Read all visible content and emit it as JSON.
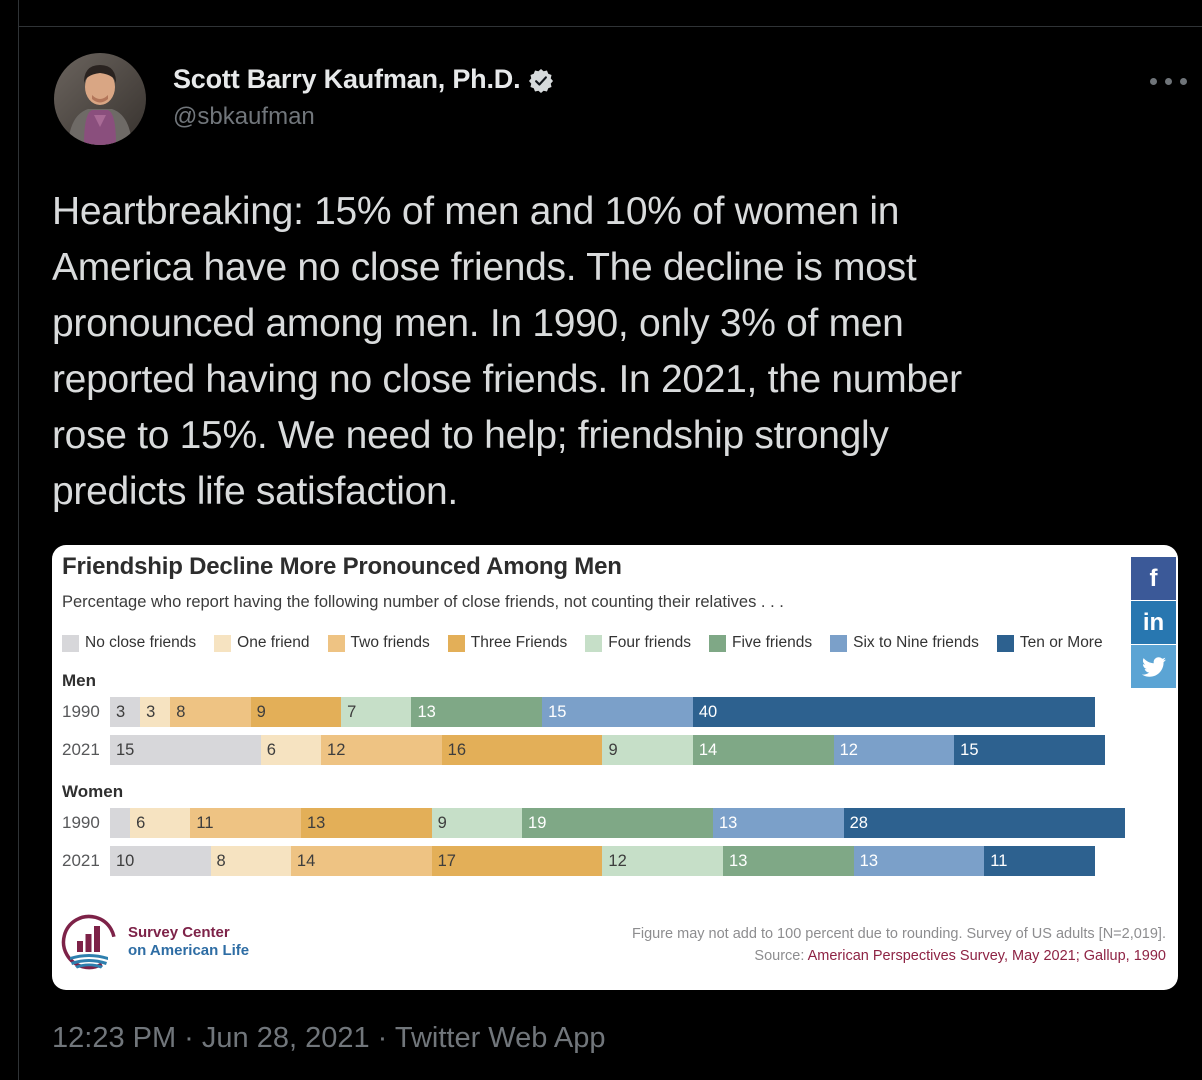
{
  "tweet": {
    "author": {
      "name": "Scott Barry Kaufman, Ph.D.",
      "handle": "@sbkaufman",
      "verified": true
    },
    "body": "Heartbreaking: 15% of men and 10% of women in\nAmerica have no close friends. The decline is most\npronounced among men. In 1990, only 3% of men\nreported having no close friends. In 2021, the number\nrose to 15%. We need to help; friendship strongly\npredicts life satisfaction.",
    "timestamp": "12:23 PM · Jun 28, 2021 · Twitter Web App"
  },
  "chart_data": {
    "type": "bar",
    "variant": "horizontal-stacked",
    "unit": "percent",
    "title": "Friendship Decline More Pronounced Among Men",
    "subtitle": "Percentage who report having the following number of close friends, not counting their relatives . . .",
    "categories": [
      "No close friends",
      "One friend",
      "Two friends",
      "Three Friends",
      "Four friends",
      "Five friends",
      "Six to Nine friends",
      "Ten or More"
    ],
    "colors": [
      "#d7d7da",
      "#f6e3c1",
      "#eec383",
      "#e3af58",
      "#c6dfc8",
      "#7fa886",
      "#7ba0c9",
      "#2d618f"
    ],
    "white_label_from_index": 5,
    "xlim": [
      0,
      101
    ],
    "legend_position": "top",
    "grid": false,
    "groups": [
      {
        "name": "Men",
        "rows": [
          {
            "year": "1990",
            "values": [
              3,
              3,
              8,
              9,
              7,
              13,
              15,
              40
            ],
            "labels": [
              "3",
              "3",
              "8",
              "9",
              "7",
              "13",
              "15",
              "40"
            ]
          },
          {
            "year": "2021",
            "values": [
              15,
              6,
              12,
              16,
              9,
              14,
              12,
              15
            ],
            "labels": [
              "15",
              "6",
              "12",
              "16",
              "9",
              "14",
              "12",
              "15"
            ]
          }
        ]
      },
      {
        "name": "Women",
        "rows": [
          {
            "year": "1990",
            "values": [
              2,
              6,
              11,
              13,
              9,
              19,
              13,
              28
            ],
            "labels": [
              "",
              "6",
              "11",
              "13",
              "9",
              "19",
              "13",
              "28"
            ]
          },
          {
            "year": "2021",
            "values": [
              10,
              8,
              14,
              17,
              12,
              13,
              13,
              11
            ],
            "labels": [
              "10",
              "8",
              "14",
              "17",
              "12",
              "13",
              "13",
              "11"
            ]
          }
        ]
      }
    ],
    "footer_note_line1": "Figure may not add to 100 percent due to rounding. Survey of US adults [N=2,019].",
    "footer_note_line2_prefix": "Source: ",
    "footer_note_line2_accent": "American Perspectives Survey, May 2021; Gallup, 1990"
  },
  "logo": {
    "line1": "Survey Center",
    "line2": "on American Life",
    "accent_maroon": "#7d2248",
    "accent_blue": "#2e6da4"
  },
  "share_buttons": [
    {
      "name": "facebook",
      "glyph": "f",
      "color": "#3b5998"
    },
    {
      "name": "linkedin",
      "glyph": "in",
      "color": "#2877b0"
    },
    {
      "name": "twitter",
      "glyph": "bird",
      "color": "#5ba4d4"
    }
  ]
}
